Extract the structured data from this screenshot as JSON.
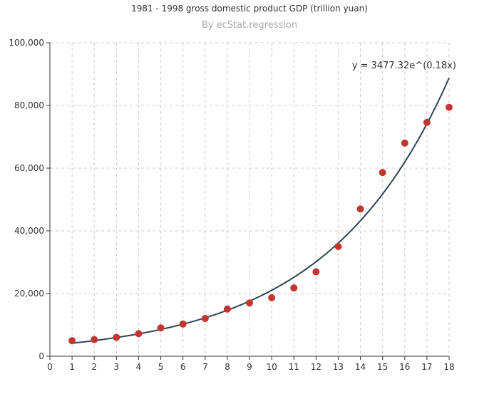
{
  "chart_data": {
    "type": "scatter",
    "title": "1981 - 1998 gross domestic product GDP (trillion yuan)",
    "subtitle": "By ecStat.regression",
    "xlabel": "",
    "ylabel": "",
    "xlim": [
      0,
      18
    ],
    "ylim": [
      0,
      100000
    ],
    "x_ticks": [
      "0",
      "1",
      "2",
      "3",
      "4",
      "5",
      "6",
      "7",
      "8",
      "9",
      "10",
      "11",
      "12",
      "13",
      "14",
      "15",
      "16",
      "17",
      "18"
    ],
    "y_ticks": [
      "0",
      "20,000",
      "40,000",
      "60,000",
      "80,000",
      "100,000"
    ],
    "grid": true,
    "series": [
      {
        "type": "scatter",
        "color": "#c23531",
        "points": [
          [
            1,
            4944.6
          ],
          [
            2,
            5311.2
          ],
          [
            3,
            6032.5
          ],
          [
            4,
            7218.9
          ],
          [
            5,
            9042.4
          ],
          [
            6,
            10275.2
          ],
          [
            7,
            12058.6
          ],
          [
            8,
            15042.8
          ],
          [
            9,
            16992.3
          ],
          [
            10,
            18667.8
          ],
          [
            11,
            21781.5
          ],
          [
            12,
            26923.5
          ],
          [
            13,
            35000.0
          ],
          [
            14,
            47000.0
          ],
          [
            15,
            58600.0
          ],
          [
            16,
            68000.0
          ],
          [
            17,
            74600.0
          ],
          [
            18,
            79400.0
          ]
        ]
      },
      {
        "type": "line",
        "color": "#2f4554",
        "regression": {
          "kind": "exponential",
          "a": 3477.32,
          "b": 0.18
        }
      }
    ],
    "annotation": "y = 3477.32e^(0.18x)"
  }
}
